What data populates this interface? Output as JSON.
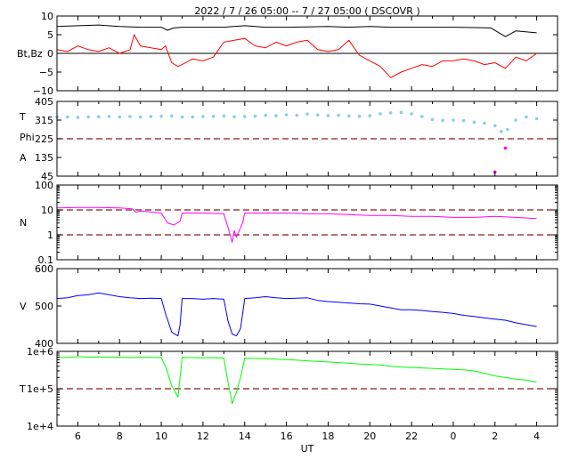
{
  "title": "2022 /  7 / 26   05:00  --   7 / 27   05:00 ( DSCOVR )",
  "x_axis": {
    "label": "UT",
    "ticks": [
      "6",
      "8",
      "10",
      "12",
      "14",
      "16",
      "18",
      "20",
      "22",
      "0",
      "2",
      "4"
    ],
    "tick_hours": [
      6,
      8,
      10,
      12,
      14,
      16,
      18,
      20,
      22,
      24,
      26,
      28
    ],
    "range_hours": [
      5,
      29
    ]
  },
  "chart_data": [
    {
      "type": "line",
      "panel": "magnetic-field",
      "ylabel": "Bt,Bz",
      "ylim": [
        -10,
        10
      ],
      "yticks": [
        10,
        5,
        0,
        -5,
        -10
      ],
      "ytick_labels": [
        "10",
        "5",
        "0",
        "−5",
        "−10"
      ],
      "reference_lines": [
        0
      ],
      "series": [
        {
          "color": "#000000",
          "x": [
            5,
            6,
            7,
            8,
            9,
            10,
            10.3,
            10.6,
            11,
            12,
            13,
            14,
            15,
            16,
            17,
            18,
            19,
            20,
            21,
            22,
            23,
            24,
            25,
            25.8,
            26.2,
            26.5,
            27,
            28
          ],
          "y": [
            7.2,
            7.4,
            7.6,
            7.2,
            7.0,
            7.0,
            6.2,
            6.8,
            7.0,
            7.0,
            7.0,
            7.4,
            7.0,
            7.0,
            7.1,
            7.2,
            7.0,
            7.2,
            7.0,
            7.0,
            7.0,
            7.0,
            6.9,
            6.8,
            5.5,
            4.5,
            6.0,
            5.5
          ]
        },
        {
          "color": "#ff0000",
          "x": [
            5,
            5.5,
            6,
            6.5,
            7,
            7.5,
            8,
            8.5,
            8.7,
            9,
            9.5,
            10,
            10.2,
            10.5,
            10.8,
            11,
            11.5,
            12,
            12.5,
            13,
            13.5,
            14,
            14.5,
            15,
            15.5,
            16,
            16.5,
            17,
            17.5,
            18,
            18.5,
            19,
            19.5,
            20,
            20.5,
            21,
            21.5,
            22,
            22.5,
            23,
            23.5,
            24,
            24.5,
            25,
            25.5,
            26,
            26.5,
            27,
            27.5,
            28
          ],
          "y": [
            1,
            0.5,
            2,
            1,
            0.5,
            1.5,
            0,
            1,
            5,
            2,
            1.5,
            1,
            2,
            -2.5,
            -3.5,
            -3,
            -1.5,
            -2,
            -1,
            3,
            3.5,
            4,
            2,
            1.5,
            3,
            2,
            3,
            3.5,
            1,
            0.5,
            1,
            3.5,
            -0.5,
            -2,
            -3.5,
            -6.5,
            -5,
            -4,
            -3,
            -3.5,
            -2,
            -2,
            -1.5,
            -2,
            -3,
            -2.5,
            -4,
            -1,
            -2,
            0
          ]
        }
      ]
    },
    {
      "type": "scatter",
      "panel": "field-angles",
      "ylabels": [
        "T",
        "Phi",
        "A"
      ],
      "ylim": [
        45,
        405
      ],
      "yticks": [
        405,
        315,
        225,
        135,
        45
      ],
      "ytick_labels": [
        "405",
        "315",
        "225",
        "135",
        "45"
      ],
      "reference_lines": [
        225
      ],
      "series": [
        {
          "color": "#87ceeb",
          "x": [
            5,
            5.5,
            6,
            6.5,
            7,
            7.5,
            8,
            8.5,
            9,
            9.5,
            10,
            10.5,
            11,
            11.5,
            12,
            12.5,
            13,
            13.5,
            14,
            14.5,
            15,
            15.5,
            16,
            16.5,
            17,
            17.5,
            18,
            18.5,
            19,
            19.5,
            20,
            20.5,
            21,
            21.5,
            22,
            22.5,
            23,
            23.5,
            24,
            24.5,
            25,
            25.5,
            26,
            26.3,
            26.6,
            27,
            27.5,
            28
          ],
          "y": [
            330,
            330,
            328,
            330,
            331,
            332,
            330,
            332,
            330,
            332,
            333,
            335,
            330,
            330,
            332,
            333,
            335,
            331,
            332,
            334,
            338,
            336,
            340,
            338,
            344,
            340,
            336,
            338,
            335,
            333,
            336,
            345,
            350,
            352,
            345,
            332,
            318,
            313,
            315,
            312,
            305,
            300,
            288,
            260,
            270,
            315,
            330,
            322
          ]
        },
        {
          "color": "#ff00ff",
          "x": [
            26,
            26.5
          ],
          "y": [
            65,
            180
          ]
        }
      ]
    },
    {
      "type": "line",
      "panel": "density",
      "ylabel": "N",
      "yscale": "log",
      "ylim": [
        0.1,
        100
      ],
      "yticks": [
        100,
        10,
        1,
        0.1
      ],
      "ytick_labels": [
        "100",
        "10",
        "1",
        "0.1"
      ],
      "reference_lines": [
        10,
        1
      ],
      "series": [
        {
          "color": "#ff00ff",
          "x": [
            5,
            6,
            7,
            8,
            8.6,
            8.8,
            9,
            10,
            10.3,
            10.6,
            10.9,
            11,
            12,
            13,
            13.2,
            13.4,
            13.5,
            13.6,
            13.9,
            14,
            15,
            16,
            17,
            18,
            19,
            20,
            21,
            22,
            23,
            24,
            25,
            26,
            27,
            28
          ],
          "y": [
            12,
            12.5,
            12.5,
            12,
            11,
            8,
            9,
            7.5,
            3,
            2.5,
            3.5,
            7.5,
            7.5,
            7,
            2,
            0.5,
            1.5,
            0.8,
            3,
            7.5,
            7.5,
            7.5,
            7,
            7,
            6.5,
            6,
            6,
            5.5,
            5.5,
            5,
            5,
            5.5,
            5,
            4.5
          ]
        }
      ]
    },
    {
      "type": "line",
      "panel": "speed",
      "ylabel": "V",
      "ylim": [
        400,
        600
      ],
      "yticks": [
        600,
        500,
        400
      ],
      "ytick_labels": [
        "600",
        "500",
        "400"
      ],
      "series": [
        {
          "color": "#0000ff",
          "x": [
            5,
            5.5,
            6,
            6.5,
            7,
            7.5,
            8,
            8.5,
            9,
            9.5,
            10,
            10.2,
            10.5,
            10.8,
            10.9,
            11,
            11.5,
            12,
            12.5,
            13,
            13.2,
            13.4,
            13.6,
            13.8,
            14,
            14.5,
            15,
            15.5,
            16,
            16.5,
            17,
            17.5,
            18,
            18.5,
            19,
            19.5,
            20,
            20.5,
            21,
            21.5,
            22,
            22.5,
            23,
            23.5,
            24,
            24.5,
            25,
            25.5,
            26,
            26.5,
            27,
            27.5,
            28
          ],
          "y": [
            520,
            522,
            528,
            530,
            535,
            530,
            525,
            522,
            520,
            521,
            520,
            480,
            430,
            420,
            450,
            520,
            520,
            518,
            520,
            518,
            460,
            425,
            420,
            440,
            520,
            522,
            525,
            522,
            520,
            521,
            522,
            515,
            512,
            510,
            508,
            506,
            505,
            500,
            495,
            490,
            490,
            488,
            485,
            483,
            480,
            475,
            472,
            468,
            465,
            462,
            455,
            450,
            445
          ]
        }
      ]
    },
    {
      "type": "line",
      "panel": "temperature",
      "ylabel": "T",
      "yscale": "log",
      "ylim": [
        10000,
        1000000
      ],
      "yticks": [
        1000000,
        100000,
        10000
      ],
      "ytick_labels": [
        "1e+6",
        "1e+5",
        "1e+4"
      ],
      "reference_lines": [
        100000
      ],
      "series": [
        {
          "color": "#00ff00",
          "x": [
            5,
            5.5,
            6,
            6.5,
            7,
            7.5,
            8,
            8.5,
            9,
            9.5,
            10,
            10.2,
            10.5,
            10.8,
            10.9,
            11,
            11.5,
            12,
            12.5,
            13,
            13.2,
            13.4,
            13.6,
            13.8,
            14,
            14.5,
            15,
            15.5,
            16,
            16.5,
            17,
            17.5,
            18,
            18.5,
            19,
            19.5,
            20,
            20.5,
            21,
            21.5,
            22,
            22.5,
            23,
            23.5,
            24,
            24.5,
            25,
            25.5,
            26,
            26.5,
            27,
            27.5,
            28
          ],
          "y": [
            700000,
            690000,
            720000,
            700000,
            710000,
            690000,
            700000,
            680000,
            700000,
            690000,
            680000,
            400000,
            120000,
            60000,
            200000,
            690000,
            680000,
            670000,
            680000,
            660000,
            150000,
            40000,
            80000,
            200000,
            660000,
            650000,
            640000,
            620000,
            600000,
            580000,
            560000,
            540000,
            520000,
            500000,
            480000,
            460000,
            450000,
            430000,
            400000,
            380000,
            370000,
            360000,
            350000,
            340000,
            330000,
            320000,
            300000,
            260000,
            220000,
            200000,
            180000,
            170000,
            150000
          ]
        }
      ]
    }
  ]
}
